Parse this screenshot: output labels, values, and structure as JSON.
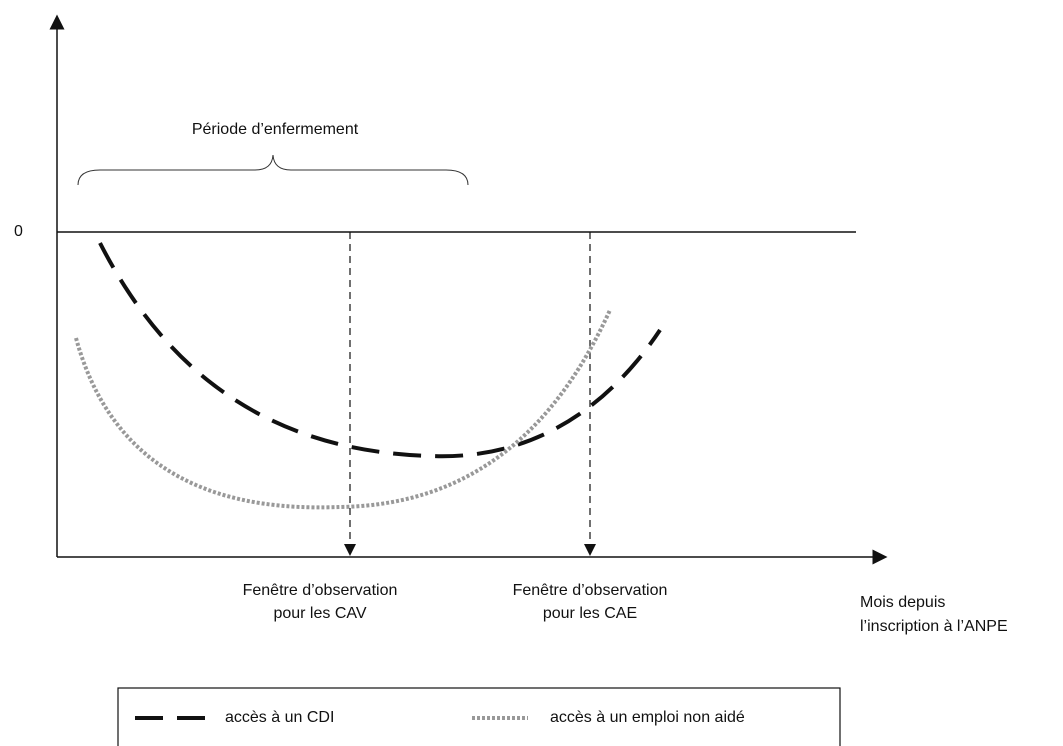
{
  "y_axis": {
    "zero_label": "0"
  },
  "brace_label": "Période d’enfermement",
  "markers": [
    {
      "label": [
        "Fenêtre d’observation",
        "pour les CAV"
      ]
    },
    {
      "label": [
        "Fenêtre d’observation",
        "pour les CAE"
      ]
    }
  ],
  "x_axis_label": [
    "Mois depuis",
    "l’inscription à l’ANPE"
  ],
  "legend": [
    {
      "label": "accès à un CDI"
    },
    {
      "label": "accès à un emploi non aidé"
    }
  ]
}
